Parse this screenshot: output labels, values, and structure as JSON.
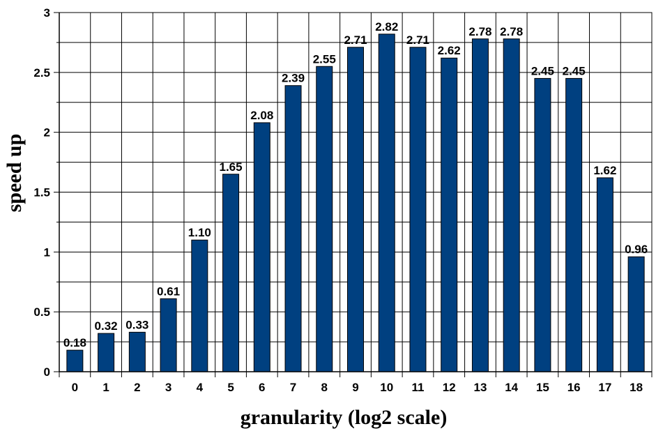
{
  "chart_data": {
    "type": "bar",
    "title": "",
    "xlabel": "granularity (log2 scale)",
    "ylabel": "speed up",
    "categories": [
      "0",
      "1",
      "2",
      "3",
      "4",
      "5",
      "6",
      "7",
      "8",
      "9",
      "10",
      "11",
      "12",
      "13",
      "14",
      "15",
      "16",
      "17",
      "18"
    ],
    "values": [
      0.18,
      0.32,
      0.33,
      0.61,
      1.1,
      1.65,
      2.08,
      2.39,
      2.55,
      2.71,
      2.82,
      2.71,
      2.62,
      2.78,
      2.78,
      2.45,
      2.45,
      1.62,
      0.96
    ],
    "data_labels": [
      "0.18",
      "0.32",
      "0.33",
      "0.61",
      "1.10",
      "1.65",
      "2.08",
      "2.39",
      "2.55",
      "2.71",
      "2.82",
      "2.71",
      "2.62",
      "2.78",
      "2.78",
      "2.45",
      "2.45",
      "1.62",
      "0.96"
    ],
    "yticks": [
      0,
      0.5,
      1,
      1.5,
      2,
      2.5,
      3
    ],
    "ytick_labels": [
      "0",
      "0.5",
      "1",
      "1.5",
      "2",
      "2.5",
      "3"
    ],
    "ylim": [
      0,
      3
    ],
    "grid": true,
    "bar_color": "#004080"
  }
}
